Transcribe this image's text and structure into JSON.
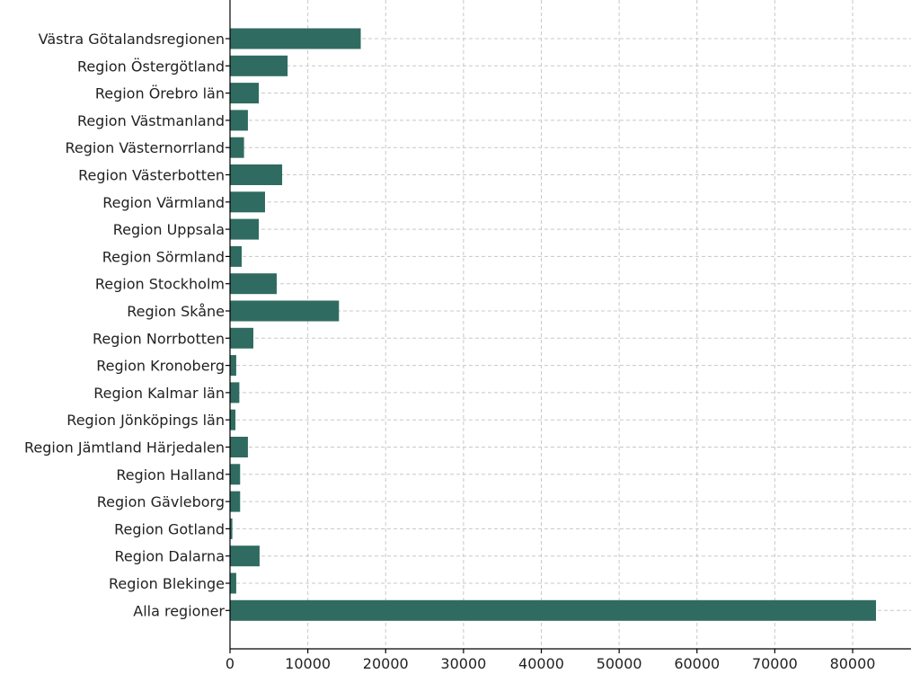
{
  "chart_data": {
    "type": "bar",
    "orientation": "horizontal",
    "categories": [
      "Västra Götalandsregionen",
      "Region Östergötland",
      "Region Örebro län",
      "Region Västmanland",
      "Region Västernorrland",
      "Region Västerbotten",
      "Region Värmland",
      "Region Uppsala",
      "Region Sörmland",
      "Region Stockholm",
      "Region Skåne",
      "Region Norrbotten",
      "Region Kronoberg",
      "Region Kalmar län",
      "Region Jönköpings län",
      "Region Jämtland Härjedalen",
      "Region Halland",
      "Region Gävleborg",
      "Region Gotland",
      "Region Dalarna",
      "Region Blekinge",
      "Alla regioner"
    ],
    "values": [
      16800,
      7400,
      3700,
      2300,
      1800,
      6700,
      4500,
      3700,
      1500,
      6000,
      14000,
      3000,
      800,
      1200,
      700,
      2300,
      1300,
      1300,
      300,
      3800,
      800,
      83000
    ],
    "xlim": [
      0,
      87500
    ],
    "xticks": [
      0,
      10000,
      20000,
      30000,
      40000,
      50000,
      60000,
      70000,
      80000
    ],
    "grid": true,
    "bar_color": "#2f6b60",
    "title": "",
    "xlabel": "",
    "ylabel": ""
  }
}
